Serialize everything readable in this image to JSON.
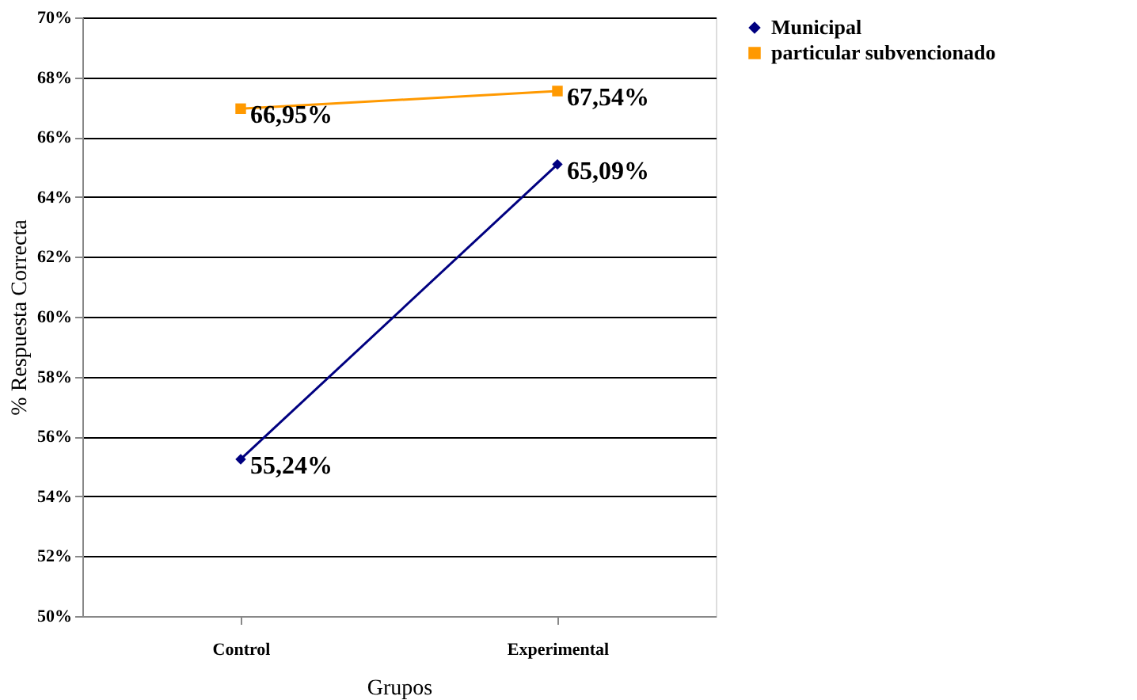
{
  "chart_data": {
    "type": "line",
    "xlabel": "Grupos",
    "ylabel": "% Respuesta Correcta",
    "categories": [
      "Control",
      "Experimental"
    ],
    "series": [
      {
        "name": "Municipal",
        "color": "#000080",
        "marker": "diamond",
        "values": [
          55.24,
          65.09
        ],
        "value_labels": [
          "55,24%",
          "65,09%"
        ]
      },
      {
        "name": "particular subvencionado",
        "color": "#ff9900",
        "marker": "square",
        "values": [
          66.95,
          67.54
        ],
        "value_labels": [
          "66,95%",
          "67,54%"
        ]
      }
    ],
    "ylim": [
      50,
      70
    ],
    "yticks": [
      {
        "value": 50,
        "label": "50%"
      },
      {
        "value": 52,
        "label": "52%"
      },
      {
        "value": 54,
        "label": "54%"
      },
      {
        "value": 56,
        "label": "56%"
      },
      {
        "value": 58,
        "label": "58%"
      },
      {
        "value": 60,
        "label": "60%"
      },
      {
        "value": 62,
        "label": "62%"
      },
      {
        "value": 64,
        "label": "64%"
      },
      {
        "value": 66,
        "label": "66%"
      },
      {
        "value": 68,
        "label": "68%"
      },
      {
        "value": 70,
        "label": "70%"
      }
    ],
    "grid": "y",
    "legend": "right",
    "line_style": "solid"
  }
}
